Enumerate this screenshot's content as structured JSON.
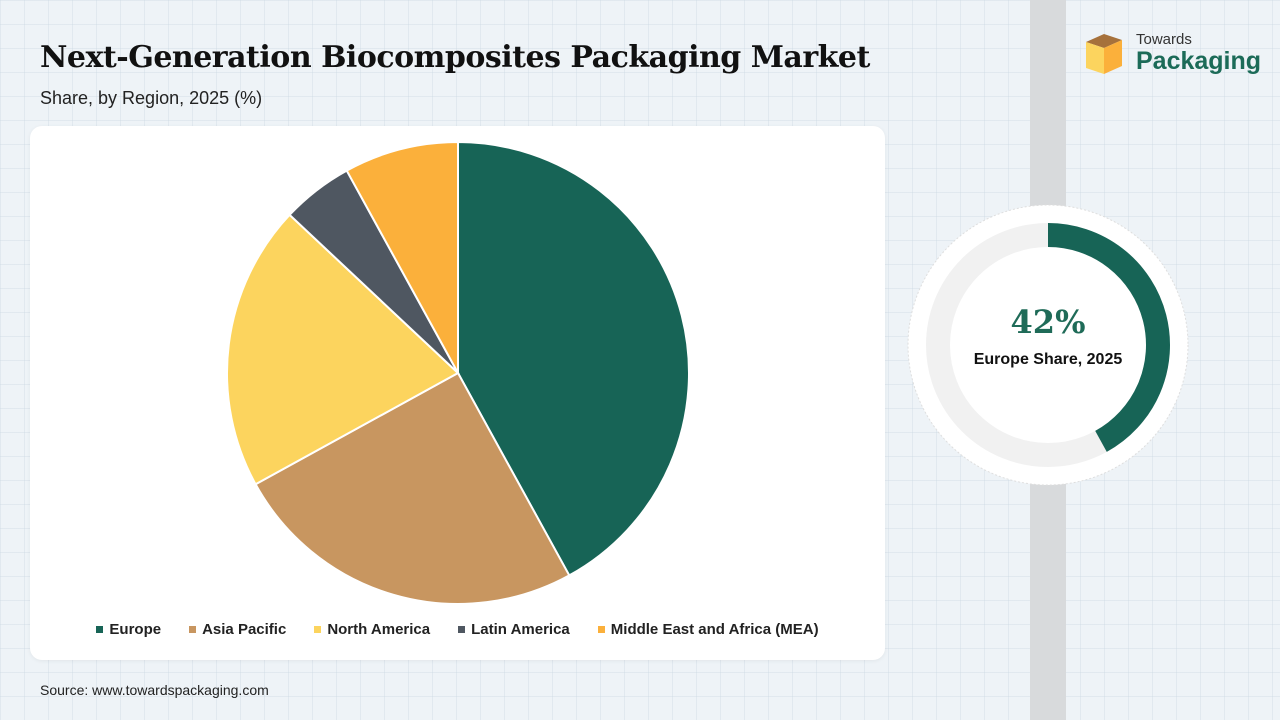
{
  "header": {
    "title": "Next-Generation Biocomposites Packaging Market",
    "subtitle": "Share, by Region, 2025 (%)"
  },
  "logo": {
    "top": "Towards",
    "bottom": "Packaging"
  },
  "source": "Source: www.towardspackaging.com",
  "chart_data": {
    "type": "pie",
    "title": "Next-Generation Biocomposites Packaging Market",
    "subtitle": "Share, by Region, 2025 (%)",
    "legend_position": "bottom",
    "slices": [
      {
        "label": "Europe",
        "value": 42,
        "color": "#176456"
      },
      {
        "label": "Asia Pacific",
        "value": 25,
        "color": "#c89660"
      },
      {
        "label": "North America",
        "value": 20,
        "color": "#fcd45e"
      },
      {
        "label": "Latin America",
        "value": 5,
        "color": "#4f5761"
      },
      {
        "label": "Middle East and Africa (MEA)",
        "value": 8,
        "color": "#fbb03b"
      }
    ]
  },
  "highlight": {
    "value": "42%",
    "label": "Europe Share, 2025",
    "fraction": 0.42,
    "color": "#176456",
    "track_color": "#f1f1f1"
  }
}
